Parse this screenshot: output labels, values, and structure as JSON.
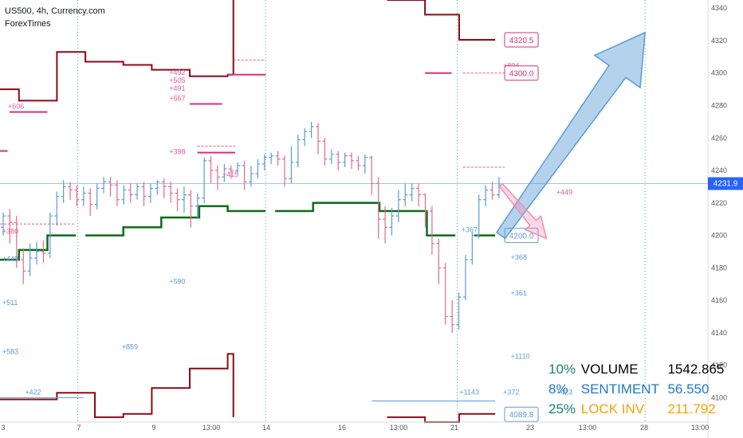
{
  "header": {
    "symbol": "US500, 4h, Currency.com",
    "indicator": "ForexTimes"
  },
  "stats": [
    {
      "pct": "10%",
      "label": "VOLUME",
      "value": "1542.865",
      "pct_color": "#1b7f6a",
      "label_color": "#000000",
      "value_color": "#000000"
    },
    {
      "pct": "8%",
      "label": "SENTIMENT",
      "value": "56.550",
      "pct_color": "#1f77c6",
      "label_color": "#1f77c6",
      "value_color": "#1f77c6"
    },
    {
      "pct": "25%",
      "label": "LOCK INV",
      "value": "211.792",
      "pct_color": "#1b7f6a",
      "label_color": "#f0a500",
      "value_color": "#f0a500"
    }
  ],
  "chart_data": {
    "type": "candlestick",
    "ylim": [
      4085,
      4345
    ],
    "y_ticks": [
      4100,
      4120,
      4140,
      4160,
      4180,
      4200,
      4220,
      4240,
      4260,
      4280,
      4300,
      4320,
      4340
    ],
    "x_ticks": [
      "3",
      "7",
      "9",
      "13:00",
      "14",
      "16",
      "13:00",
      "21",
      "23",
      "13:00",
      "28",
      "13:00"
    ],
    "current_price": "4231.9",
    "price_labels": [
      {
        "text": "4320.5",
        "value": 4320.5,
        "color": "#d4307a"
      },
      {
        "text": "4300.0",
        "value": 4300.0,
        "color": "#d4307a"
      },
      {
        "text": "4200.0",
        "value": 4200.0,
        "color": "#5b9bd5"
      },
      {
        "text": "4089.8",
        "value": 4089.8,
        "color": "#5b9bd5"
      }
    ],
    "annotations_pink": [
      {
        "text": "+606",
        "x": 1.05,
        "y": 4278
      },
      {
        "text": "+492",
        "x": 5.3,
        "y": 4299
      },
      {
        "text": "+505",
        "x": 5.3,
        "y": 4294
      },
      {
        "text": "+491",
        "x": 5.3,
        "y": 4289
      },
      {
        "text": "+667",
        "x": 5.3,
        "y": 4283
      },
      {
        "text": "+398",
        "x": 5.3,
        "y": 4250
      },
      {
        "text": "+415",
        "x": 6.7,
        "y": 4236
      },
      {
        "text": "+380",
        "x": 0.9,
        "y": 4201
      },
      {
        "text": "+804",
        "x": 14.1,
        "y": 4303
      },
      {
        "text": "+449",
        "x": 15.5,
        "y": 4225
      }
    ],
    "annotations_blue": [
      {
        "text": "+449",
        "x": 0.9,
        "y": 4184
      },
      {
        "text": "+590",
        "x": 5.3,
        "y": 4170
      },
      {
        "text": "+511",
        "x": 0.9,
        "y": 4157
      },
      {
        "text": "+859",
        "x": 4.05,
        "y": 4130
      },
      {
        "text": "+583",
        "x": 0.9,
        "y": 4127
      },
      {
        "text": "+422",
        "x": 1.5,
        "y": 4102
      },
      {
        "text": "+367",
        "x": 13.0,
        "y": 4202
      },
      {
        "text": "+368",
        "x": 14.3,
        "y": 4185
      },
      {
        "text": "+361",
        "x": 14.3,
        "y": 4163
      },
      {
        "text": "+1110",
        "x": 14.3,
        "y": 4124
      },
      {
        "text": "+1143",
        "x": 12.95,
        "y": 4102
      },
      {
        "text": "+372",
        "x": 14.1,
        "y": 4102
      },
      {
        "text": "+423",
        "x": 15.5,
        "y": 4102
      }
    ],
    "candles": [
      [
        4205,
        4212,
        4200,
        4214
      ],
      [
        4212,
        4208,
        4195,
        4216
      ],
      [
        4208,
        4185,
        4180,
        4212
      ],
      [
        4185,
        4178,
        4170,
        4192
      ],
      [
        4178,
        4186,
        4175,
        4195
      ],
      [
        4186,
        4190,
        4182,
        4196
      ],
      [
        4190,
        4189,
        4183,
        4197
      ],
      [
        4189,
        4212,
        4186,
        4214
      ],
      [
        4212,
        4224,
        4206,
        4227
      ],
      [
        4224,
        4230,
        4220,
        4234
      ],
      [
        4230,
        4228,
        4222,
        4233
      ],
      [
        4228,
        4222,
        4218,
        4231
      ],
      [
        4222,
        4226,
        4218,
        4230
      ],
      [
        4226,
        4219,
        4212,
        4229
      ],
      [
        4219,
        4229,
        4216,
        4232
      ],
      [
        4229,
        4233,
        4226,
        4236
      ],
      [
        4233,
        4231,
        4224,
        4236
      ],
      [
        4231,
        4222,
        4218,
        4234
      ],
      [
        4222,
        4228,
        4219,
        4231
      ],
      [
        4228,
        4225,
        4220,
        4232
      ],
      [
        4225,
        4230,
        4222,
        4232
      ],
      [
        4230,
        4224,
        4218,
        4233
      ],
      [
        4224,
        4229,
        4220,
        4232
      ],
      [
        4229,
        4233,
        4225,
        4234
      ],
      [
        4233,
        4230,
        4223,
        4235
      ],
      [
        4230,
        4226,
        4220,
        4233
      ],
      [
        4226,
        4222,
        4215,
        4229
      ],
      [
        4222,
        4225,
        4214,
        4230
      ],
      [
        4225,
        4218,
        4205,
        4228
      ],
      [
        4218,
        4223,
        4210,
        4226
      ],
      [
        4223,
        4246,
        4220,
        4248
      ],
      [
        4246,
        4240,
        4232,
        4249
      ],
      [
        4240,
        4236,
        4228,
        4243
      ],
      [
        4236,
        4241,
        4233,
        4244
      ],
      [
        4241,
        4240,
        4235,
        4243
      ],
      [
        4240,
        4243,
        4238,
        4245
      ],
      [
        4243,
        4233,
        4228,
        4246
      ],
      [
        4233,
        4238,
        4230,
        4243
      ],
      [
        4238,
        4244,
        4235,
        4247
      ],
      [
        4244,
        4248,
        4240,
        4250
      ],
      [
        4248,
        4249,
        4244,
        4251
      ],
      [
        4249,
        4247,
        4243,
        4252
      ],
      [
        4247,
        4235,
        4230,
        4249
      ],
      [
        4235,
        4245,
        4232,
        4255
      ],
      [
        4245,
        4259,
        4242,
        4262
      ],
      [
        4259,
        4264,
        4255,
        4266
      ],
      [
        4264,
        4267,
        4260,
        4270
      ],
      [
        4267,
        4258,
        4250,
        4269
      ],
      [
        4258,
        4247,
        4243,
        4260
      ],
      [
        4247,
        4250,
        4244,
        4253
      ],
      [
        4250,
        4245,
        4240,
        4252
      ],
      [
        4245,
        4249,
        4242,
        4251
      ],
      [
        4249,
        4246,
        4241,
        4251
      ],
      [
        4246,
        4243,
        4240,
        4249
      ],
      [
        4243,
        4248,
        4238,
        4250
      ],
      [
        4248,
        4232,
        4225,
        4249
      ],
      [
        4232,
        4210,
        4198,
        4236
      ],
      [
        4210,
        4205,
        4195,
        4218
      ],
      [
        4205,
        4212,
        4200,
        4217
      ],
      [
        4212,
        4222,
        4208,
        4228
      ],
      [
        4222,
        4225,
        4218,
        4232
      ],
      [
        4225,
        4229,
        4221,
        4232
      ],
      [
        4229,
        4225,
        4218,
        4232
      ],
      [
        4225,
        4215,
        4205,
        4226
      ],
      [
        4215,
        4195,
        4188,
        4218
      ],
      [
        4195,
        4180,
        4170,
        4198
      ],
      [
        4180,
        4150,
        4145,
        4183
      ],
      [
        4150,
        4145,
        4140,
        4160
      ],
      [
        4145,
        4162,
        4142,
        4165
      ],
      [
        4162,
        4185,
        4160,
        4188
      ],
      [
        4185,
        4200,
        4182,
        4202
      ],
      [
        4200,
        4222,
        4198,
        4225
      ],
      [
        4222,
        4228,
        4218,
        4231
      ],
      [
        4228,
        4225,
        4222,
        4233
      ],
      [
        4225,
        4231,
        4223,
        4236
      ]
    ],
    "levels_red": [
      [
        [
          0,
          4290
        ],
        [
          0.5,
          4290
        ],
        [
          0.5,
          4283
        ],
        [
          1.5,
          4283
        ],
        [
          1.5,
          4313
        ],
        [
          2.25,
          4313
        ],
        [
          2.25,
          4307
        ],
        [
          3.25,
          4307
        ],
        [
          3.25,
          4305
        ],
        [
          4.0,
          4305
        ],
        [
          4.0,
          4302
        ],
        [
          5.0,
          4302
        ],
        [
          5.0,
          4298
        ],
        [
          6.0,
          4298
        ],
        [
          6.0,
          4299
        ],
        [
          6.15,
          4299
        ],
        [
          6.15,
          4345
        ]
      ],
      [
        [
          10.2,
          4345
        ],
        [
          11.2,
          4345
        ],
        [
          11.2,
          4336
        ],
        [
          12.1,
          4336
        ],
        [
          12.1,
          4320.5
        ],
        [
          13.05,
          4320.5
        ]
      ],
      [
        [
          0,
          4099
        ],
        [
          1.5,
          4099
        ],
        [
          1.5,
          4103
        ],
        [
          2.5,
          4103
        ],
        [
          2.5,
          4088
        ],
        [
          3.25,
          4088
        ],
        [
          3.25,
          4090
        ],
        [
          4.0,
          4090
        ],
        [
          4.0,
          4106
        ],
        [
          5.0,
          4106
        ],
        [
          5.0,
          4118
        ],
        [
          6.0,
          4118
        ],
        [
          6.0,
          4127
        ],
        [
          6.15,
          4127
        ],
        [
          6.15,
          4088
        ]
      ],
      [
        [
          10.2,
          4088
        ],
        [
          11.2,
          4088
        ],
        [
          11.2,
          4085
        ],
        [
          12.1,
          4085
        ],
        [
          12.1,
          4090
        ],
        [
          13.05,
          4090
        ]
      ]
    ],
    "levels_green": [
      [
        [
          0,
          4185
        ],
        [
          0.5,
          4185
        ],
        [
          0.5,
          4191
        ],
        [
          1.25,
          4191
        ],
        [
          1.25,
          4200
        ],
        [
          2.0,
          4200
        ]
      ],
      [
        [
          2.25,
          4200
        ],
        [
          3.25,
          4200
        ],
        [
          3.25,
          4205
        ],
        [
          4.25,
          4205
        ],
        [
          4.25,
          4211
        ],
        [
          5.25,
          4211
        ],
        [
          5.25,
          4218
        ],
        [
          6.0,
          4218
        ],
        [
          6.0,
          4215
        ],
        [
          7.0,
          4215
        ]
      ],
      [
        [
          7.25,
          4215
        ],
        [
          8.25,
          4215
        ],
        [
          8.25,
          4220
        ],
        [
          10.0,
          4220
        ],
        [
          10.0,
          4215
        ],
        [
          11.25,
          4215
        ],
        [
          11.25,
          4200
        ],
        [
          12.0,
          4200
        ]
      ],
      [
        [
          12.5,
          4200
        ],
        [
          13.05,
          4200
        ]
      ]
    ],
    "pink_segments": [
      [
        0.25,
        4276,
        1.25,
        4276
      ],
      [
        5.0,
        4281,
        5.85,
        4281
      ],
      [
        6.0,
        4299,
        7.0,
        4299
      ],
      [
        5.2,
        4251,
        6.2,
        4251
      ],
      [
        11.2,
        4300,
        11.9,
        4300
      ],
      [
        0,
        4252,
        0.2,
        4252
      ]
    ],
    "pink_dashed": [
      [
        6.15,
        4308,
        7.0,
        4308
      ],
      [
        5.2,
        4255,
        6.2,
        4255
      ],
      [
        12.2,
        4300,
        14.2,
        4300
      ],
      [
        12.2,
        4242,
        13.3,
        4242
      ],
      [
        0,
        4207,
        2.0,
        4207
      ]
    ],
    "blue_segments": [
      [
        0,
        4100,
        2.2,
        4100
      ],
      [
        9.8,
        4098,
        13.05,
        4098
      ]
    ],
    "arrow_up": {
      "from": [
        13.2,
        4200
      ],
      "to": [
        17.0,
        4325
      ]
    },
    "arrow_down": {
      "from": [
        13.2,
        4231
      ],
      "to": [
        14.4,
        4198
      ]
    },
    "vlines": [
      2.05,
      7.0,
      12.05,
      17.0
    ]
  }
}
